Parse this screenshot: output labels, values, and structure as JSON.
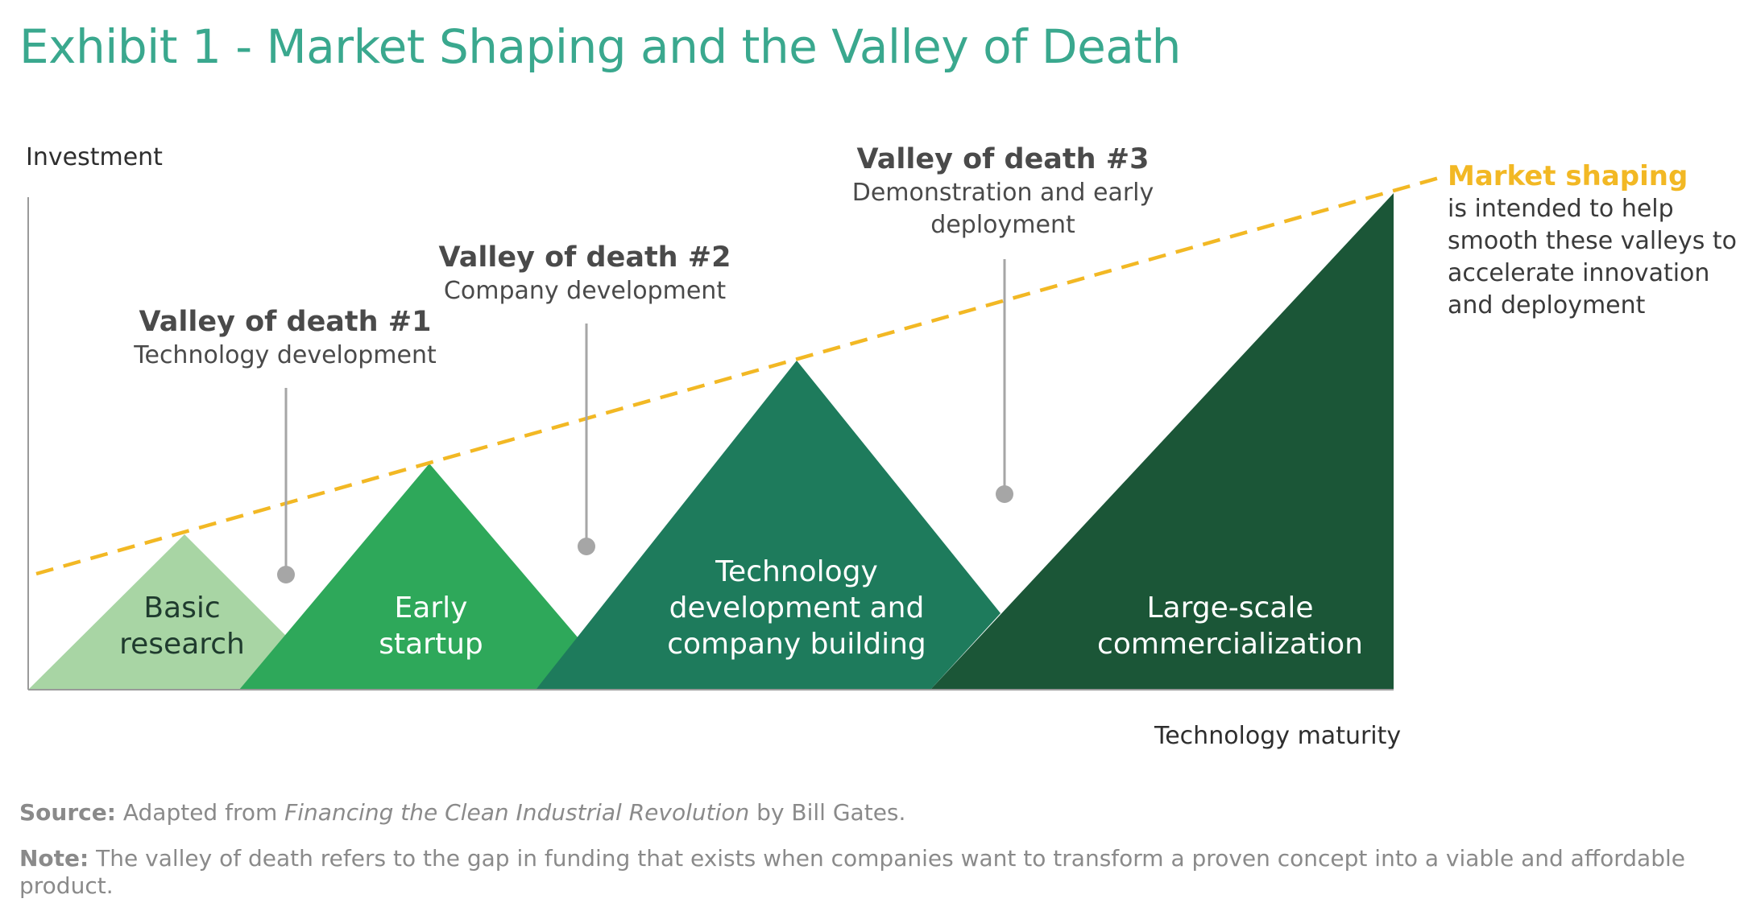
{
  "title": "Exhibit 1 - Market Shaping and the Valley of Death",
  "colors": {
    "title": "#3aa88e",
    "market_shaping": "#f2b824",
    "basic_research": "#a8d5a4",
    "early_startup": "#2ea85a",
    "tech_dev": "#1e7b5c",
    "large_scale": "#1b5637",
    "axis": "#9a9a9a",
    "valley_marker": "#a6a6a6"
  },
  "axes": {
    "y_label": "Investment",
    "x_label": "Technology maturity"
  },
  "stages": [
    {
      "label_lines": [
        "Basic",
        "research"
      ]
    },
    {
      "label_lines": [
        "Early",
        "startup"
      ]
    },
    {
      "label_lines": [
        "Technology",
        "development and",
        "company building"
      ]
    },
    {
      "label_lines": [
        "Large-scale",
        "commercialization"
      ]
    }
  ],
  "valleys": [
    {
      "title": "Valley of death #1",
      "description_lines": [
        "Technology development"
      ]
    },
    {
      "title": "Valley of death #2",
      "description_lines": [
        "Company development"
      ]
    },
    {
      "title": "Valley of death #3",
      "description_lines": [
        "Demonstration and early",
        "deployment"
      ]
    }
  ],
  "market_shaping": {
    "title": "Market shaping",
    "description_lines": [
      "is intended to help",
      "smooth these valleys to",
      "accelerate innovation",
      "and deployment"
    ]
  },
  "footnotes": {
    "source_label": "Source:",
    "source_pre": "Adapted from",
    "source_book": "Financing the Clean Industrial Revolution",
    "source_post": "by Bill Gates.",
    "note_label": "Note:",
    "note_text": "The valley of death refers to the gap in funding that exists when companies want to transform a proven concept into a viable and affordable product."
  }
}
